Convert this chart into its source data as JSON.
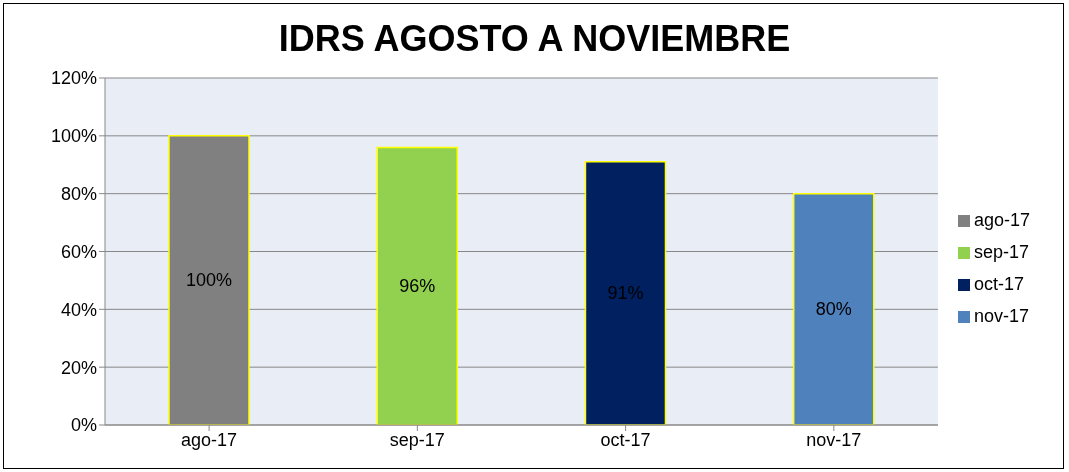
{
  "chart_data": {
    "type": "bar",
    "title": "IDRS AGOSTO A NOVIEMBRE",
    "categories": [
      "ago-17",
      "sep-17",
      "oct-17",
      "nov-17"
    ],
    "series": [
      {
        "name": "ago-17",
        "color": "#808080",
        "values": [
          100,
          null,
          null,
          null
        ],
        "value_labels": [
          "100%",
          null,
          null,
          null
        ]
      },
      {
        "name": "sep-17",
        "color": "#92d050",
        "values": [
          null,
          96,
          null,
          null
        ],
        "value_labels": [
          null,
          "96%",
          null,
          null
        ]
      },
      {
        "name": "oct-17",
        "color": "#002060",
        "values": [
          null,
          null,
          91,
          null
        ],
        "value_labels": [
          null,
          null,
          "91%",
          null
        ]
      },
      {
        "name": "nov-17",
        "color": "#4f81bd",
        "values": [
          null,
          null,
          null,
          80
        ],
        "value_labels": [
          null,
          null,
          null,
          "80%"
        ]
      }
    ],
    "ylim": [
      0,
      120
    ],
    "yticks": [
      {
        "value": 0,
        "label": "0%"
      },
      {
        "value": 20,
        "label": "20%"
      },
      {
        "value": 40,
        "label": "40%"
      },
      {
        "value": 60,
        "label": "60%"
      },
      {
        "value": 80,
        "label": "80%"
      },
      {
        "value": 100,
        "label": "100%"
      },
      {
        "value": 120,
        "label": "120%"
      }
    ],
    "grid": "y",
    "legend": "right"
  }
}
